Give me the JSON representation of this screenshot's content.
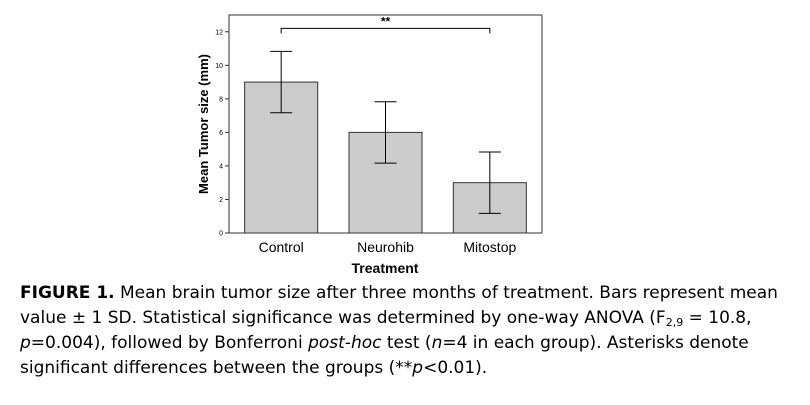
{
  "chart_data": {
    "type": "bar",
    "categories": [
      "Control",
      "Neurohib",
      "Mitostop"
    ],
    "values": [
      9.0,
      6.0,
      3.0
    ],
    "error": [
      1.83,
      1.83,
      1.83
    ],
    "xlabel": "Treatment",
    "ylabel": "Mean Tumor size (mm)",
    "ylim": [
      0,
      13
    ],
    "yticks": [
      0,
      2,
      4,
      6,
      8,
      10,
      12
    ],
    "grid": false,
    "bar_color": "#cccccc",
    "annotation": {
      "text": "**",
      "from": "Control",
      "to": "Mitostop",
      "y": 12.2
    }
  },
  "caption": {
    "label": "FIGURE 1.",
    "part1": " Mean brain tumor size after three months of treatment. Bars represent mean value ± 1 SD. Statistical significance was determined by one-way ANOVA (F",
    "sub": "2,9",
    "part2": " = 10.8, ",
    "p_italic": "p",
    "part3": "=0.004), followed by Bonferroni ",
    "posthoc_italic": "post-hoc",
    "part4": " test (",
    "n_italic": "n",
    "part5": "=4 in each group). Asterisks denote significant differences between the groups (**",
    "p2_italic": "p",
    "part6": "<0.01)."
  }
}
